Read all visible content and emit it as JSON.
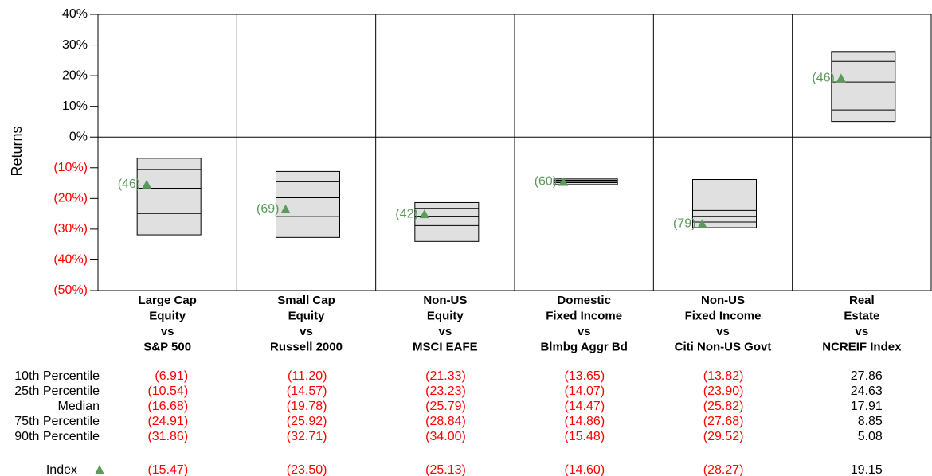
{
  "chart_data": {
    "type": "floating-bar",
    "y_label": "Returns",
    "ylim": [
      -50,
      40
    ],
    "yticks": [
      {
        "value": -50,
        "label": "(50%)"
      },
      {
        "value": -40,
        "label": "(40%)"
      },
      {
        "value": -30,
        "label": "(30%)"
      },
      {
        "value": -20,
        "label": "(20%)"
      },
      {
        "value": -10,
        "label": "(10%)"
      },
      {
        "value": 0,
        "label": "0%"
      },
      {
        "value": 10,
        "label": "10%"
      },
      {
        "value": 20,
        "label": "20%"
      },
      {
        "value": 30,
        "label": "30%"
      },
      {
        "value": 40,
        "label": "40%"
      }
    ],
    "categories": [
      [
        "Large Cap",
        "Equity",
        "vs",
        "S&P 500"
      ],
      [
        "Small Cap",
        "Equity",
        "vs",
        "Russell 2000"
      ],
      [
        "Non-US",
        "Equity",
        "vs",
        "MSCI EAFE"
      ],
      [
        "Domestic",
        "Fixed Income",
        "vs",
        "Blmbg Aggr Bd"
      ],
      [
        "Non-US",
        "Fixed Income",
        "vs",
        "Citi Non-US Govt"
      ],
      [
        "Real",
        "Estate",
        "vs",
        "NCREIF Index"
      ]
    ],
    "box_color": "#e0e0e0",
    "negative_color": "#ff0000",
    "series": [
      {
        "name": "10th Percentile",
        "values": [
          -6.91,
          -11.2,
          -21.33,
          -13.65,
          -13.82,
          27.86
        ],
        "value_labels": [
          "(6.91)",
          "(11.20)",
          "(21.33)",
          "(13.65)",
          "(13.82)",
          "27.86"
        ]
      },
      {
        "name": "25th Percentile",
        "values": [
          -10.54,
          -14.57,
          -23.23,
          -14.07,
          -23.9,
          24.63
        ],
        "value_labels": [
          "(10.54)",
          "(14.57)",
          "(23.23)",
          "(14.07)",
          "(23.90)",
          "24.63"
        ]
      },
      {
        "name": "Median",
        "values": [
          -16.68,
          -19.78,
          -25.79,
          -14.47,
          -25.82,
          17.91
        ],
        "value_labels": [
          "(16.68)",
          "(19.78)",
          "(25.79)",
          "(14.47)",
          "(25.82)",
          "17.91"
        ]
      },
      {
        "name": "75th Percentile",
        "values": [
          -24.91,
          -25.92,
          -28.84,
          -14.86,
          -27.68,
          8.85
        ],
        "value_labels": [
          "(24.91)",
          "(25.92)",
          "(28.84)",
          "(14.86)",
          "(27.68)",
          "8.85"
        ]
      },
      {
        "name": "90th Percentile",
        "values": [
          -31.86,
          -32.71,
          -34.0,
          -15.48,
          -29.52,
          5.08
        ],
        "value_labels": [
          "(31.86)",
          "(32.71)",
          "(34.00)",
          "(15.48)",
          "(29.52)",
          "5.08"
        ]
      }
    ],
    "index": {
      "name": "Index",
      "color": "#5b9a5b",
      "values": [
        -15.47,
        -23.5,
        -25.13,
        -14.6,
        -28.27,
        19.15
      ],
      "value_labels": [
        "(15.47)",
        "(23.50)",
        "(25.13)",
        "(14.60)",
        "(28.27)",
        "19.15"
      ],
      "ranks": [
        46,
        69,
        42,
        60,
        79,
        46
      ],
      "rank_labels": [
        "(46)",
        "(69)",
        "(42)",
        "(60)",
        "(79)",
        "(46)"
      ]
    }
  }
}
